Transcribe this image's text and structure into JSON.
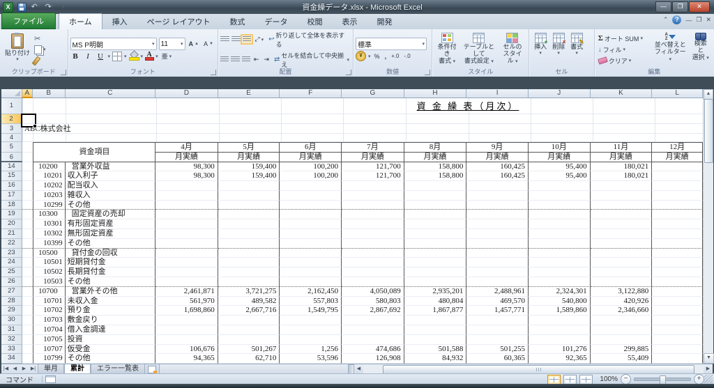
{
  "window": {
    "title": "資金繰データ.xlsx - Microsoft Excel"
  },
  "ribbon": {
    "tabs": [
      {
        "label": "ファイル",
        "file": true
      },
      {
        "label": "ホーム",
        "active": true
      },
      {
        "label": "挿入"
      },
      {
        "label": "ページ レイアウト"
      },
      {
        "label": "数式"
      },
      {
        "label": "データ"
      },
      {
        "label": "校閲"
      },
      {
        "label": "表示"
      },
      {
        "label": "開発"
      }
    ],
    "clipboard": {
      "label": "クリップボード",
      "paste": "貼り付け"
    },
    "font": {
      "label": "フォント",
      "name": "MS P明朝",
      "size": "11",
      "bold": "B",
      "italic": "I",
      "underline": "U",
      "phonetic": "亜"
    },
    "alignment": {
      "label": "配置",
      "wrap": "折り返して全体を表示する",
      "merge": "セルを結合して中央揃え"
    },
    "number": {
      "label": "数値",
      "format": "標準",
      "percent": "%",
      "comma": ",",
      "inc": "+.0",
      "dec": "-.0"
    },
    "styles": {
      "label": "スタイル",
      "cf1": "条件付き",
      "cf2": "書式",
      "tbl1": "テーブルとして",
      "tbl2": "書式設定",
      "cs1": "セルの",
      "cs2": "スタイル"
    },
    "cells": {
      "label": "セル",
      "insert": "挿入",
      "delete": "削除",
      "format": "書式"
    },
    "editing": {
      "label": "編集",
      "autosum": "オート SUM",
      "fill": "フィル",
      "clear": "クリア",
      "sort1": "並べ替えと",
      "sort2": "フィルター",
      "find1": "検索と",
      "find2": "選択"
    }
  },
  "formula_bar": {
    "name_box": "A2",
    "formula": ""
  },
  "sheet": {
    "title": "資 金 繰 表（月次）",
    "company": "ABC株式会社",
    "header_item": "資金項目",
    "subheader": "月実績",
    "columns": [
      "A",
      "B",
      "C",
      "D",
      "E",
      "F",
      "G",
      "H",
      "I",
      "J",
      "K",
      "L"
    ],
    "months": [
      "4月",
      "5月",
      "6月",
      "7月",
      "8月",
      "9月",
      "10月",
      "11月",
      "12月"
    ],
    "rows": [
      {
        "n": 14,
        "code": "10200",
        "name": "営業外収益",
        "parent": true,
        "v": [
          "98,300",
          "159,400",
          "100,200",
          "121,700",
          "158,800",
          "160,425",
          "95,400",
          "180,021",
          ""
        ]
      },
      {
        "n": 15,
        "code": "10201",
        "name": "収入利子",
        "v": [
          "98,300",
          "159,400",
          "100,200",
          "121,700",
          "158,800",
          "160,425",
          "95,400",
          "180,021",
          ""
        ]
      },
      {
        "n": 16,
        "code": "10202",
        "name": "配当収入"
      },
      {
        "n": 17,
        "code": "10203",
        "name": "雑収入"
      },
      {
        "n": 18,
        "code": "10299",
        "name": "その他",
        "end": true
      },
      {
        "n": 19,
        "code": "10300",
        "name": "固定資産の売却",
        "parent": true
      },
      {
        "n": 20,
        "code": "10301",
        "name": "有形固定資産"
      },
      {
        "n": 21,
        "code": "10302",
        "name": "無形固定資産"
      },
      {
        "n": 22,
        "code": "10399",
        "name": "その他",
        "end": true
      },
      {
        "n": 23,
        "code": "10500",
        "name": "貸付金の回収",
        "parent": true
      },
      {
        "n": 24,
        "code": "10501",
        "name": "短期貸付金"
      },
      {
        "n": 25,
        "code": "10502",
        "name": "長期貸付金"
      },
      {
        "n": 26,
        "code": "10503",
        "name": "その他",
        "end": true
      },
      {
        "n": 27,
        "code": "10700",
        "name": "営業外その他",
        "parent": true,
        "v": [
          "2,461,871",
          "3,721,275",
          "2,162,450",
          "4,050,089",
          "2,935,201",
          "2,488,961",
          "2,324,301",
          "3,122,880",
          ""
        ]
      },
      {
        "n": 28,
        "code": "10701",
        "name": "未収入金",
        "v": [
          "561,970",
          "489,582",
          "557,803",
          "580,803",
          "480,804",
          "469,570",
          "540,800",
          "420,926",
          ""
        ]
      },
      {
        "n": 29,
        "code": "10702",
        "name": "預り金",
        "v": [
          "1,698,860",
          "2,667,716",
          "1,549,795",
          "2,867,692",
          "1,867,877",
          "1,457,771",
          "1,589,860",
          "2,346,660",
          ""
        ]
      },
      {
        "n": 30,
        "code": "10703",
        "name": "敷金戻り"
      },
      {
        "n": 31,
        "code": "10704",
        "name": "借入金調達"
      },
      {
        "n": 32,
        "code": "10705",
        "name": "投資"
      },
      {
        "n": 33,
        "code": "10707",
        "name": "仮受金",
        "v": [
          "106,676",
          "501,267",
          "1,256",
          "474,686",
          "501,588",
          "501,255",
          "101,276",
          "299,885",
          ""
        ]
      },
      {
        "n": 34,
        "code": "10799",
        "name": "その他",
        "v": [
          "94,365",
          "62,710",
          "53,596",
          "126,908",
          "84,932",
          "60,365",
          "92,365",
          "55,409",
          ""
        ]
      }
    ]
  },
  "sheet_tabs": [
    {
      "label": "単月"
    },
    {
      "label": "累計",
      "active": true
    },
    {
      "label": "エラー一覧表"
    }
  ],
  "status_bar": {
    "left": "コマンド",
    "zoom": "100%"
  }
}
